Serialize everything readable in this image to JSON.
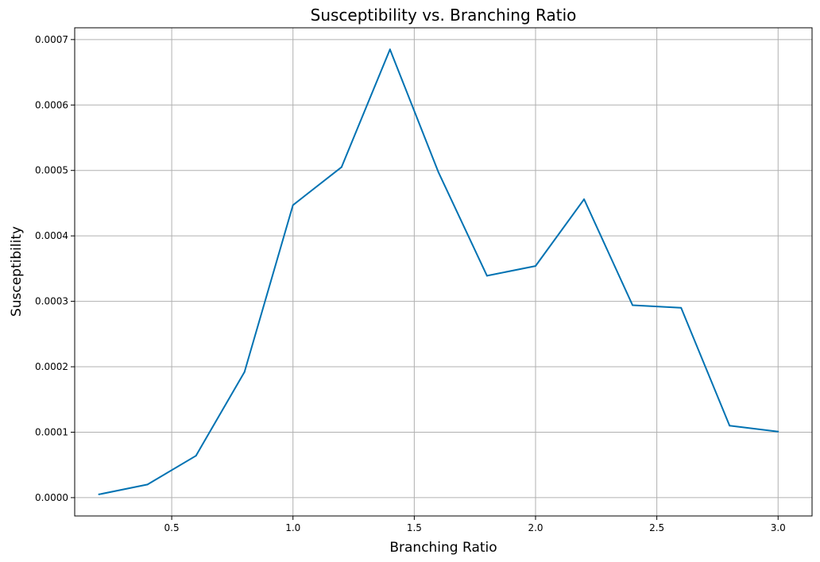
{
  "chart_data": {
    "type": "line",
    "title": "Susceptibility vs. Branching Ratio",
    "xlabel": "Branching Ratio",
    "ylabel": "Susceptibility",
    "xlim": [
      0.1,
      3.14
    ],
    "ylim": [
      -2.8e-05,
      0.000718
    ],
    "xticks": [
      0.5,
      1.0,
      1.5,
      2.0,
      2.5,
      3.0
    ],
    "xtick_labels": [
      "0.5",
      "1.0",
      "1.5",
      "2.0",
      "2.5",
      "3.0"
    ],
    "yticks": [
      0.0,
      0.0001,
      0.0002,
      0.0003,
      0.0004,
      0.0005,
      0.0006,
      0.0007
    ],
    "ytick_labels": [
      "0.0000",
      "0.0001",
      "0.0002",
      "0.0003",
      "0.0004",
      "0.0005",
      "0.0006",
      "0.0007"
    ],
    "grid": true,
    "line_color": "#0072B2",
    "grid_color": "#b0b0b0",
    "series": [
      {
        "x": [
          0.2,
          0.4,
          0.6,
          0.8,
          1.0,
          1.2,
          1.4,
          1.6,
          1.8,
          2.0,
          2.2,
          2.4,
          2.6,
          2.8,
          3.0
        ],
        "y": [
          5e-06,
          2e-05,
          6.4e-05,
          0.000192,
          0.000447,
          0.000505,
          0.000685,
          0.000497,
          0.000339,
          0.000354,
          0.000456,
          0.000294,
          0.00029,
          0.00011,
          0.000101
        ]
      }
    ]
  }
}
